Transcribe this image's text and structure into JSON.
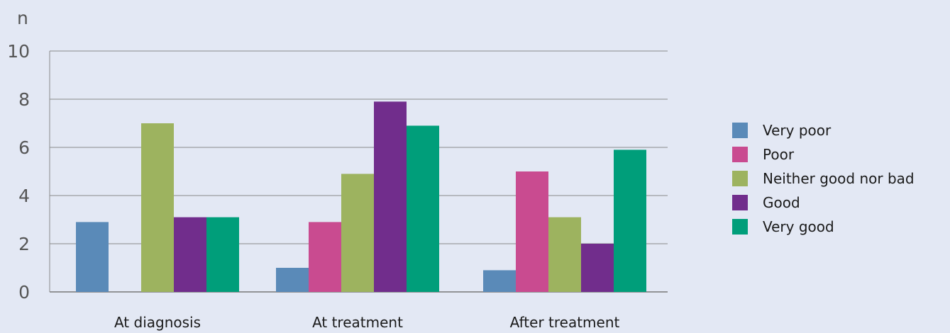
{
  "chart_data": {
    "type": "bar",
    "ylabel": "n",
    "xlabel": "",
    "ylim": [
      0,
      10
    ],
    "yticks": [
      0,
      2,
      4,
      6,
      8,
      10
    ],
    "grid": true,
    "legend_position": "right",
    "categories": [
      "At diagnosis",
      "At treatment",
      "After treatment"
    ],
    "series": [
      {
        "name": "Very poor",
        "color": "#5a8ab8",
        "values": [
          2.9,
          1.0,
          0.9
        ]
      },
      {
        "name": "Poor",
        "color": "#c94b90",
        "values": [
          0,
          2.9,
          5.0
        ]
      },
      {
        "name": "Neither good nor bad",
        "color": "#9db35f",
        "values": [
          7.0,
          4.9,
          3.1
        ]
      },
      {
        "name": "Good",
        "color": "#712d8c",
        "values": [
          3.1,
          7.9,
          2.0
        ]
      },
      {
        "name": "Very good",
        "color": "#009e7a",
        "values": [
          3.1,
          6.9,
          5.9
        ]
      }
    ]
  }
}
